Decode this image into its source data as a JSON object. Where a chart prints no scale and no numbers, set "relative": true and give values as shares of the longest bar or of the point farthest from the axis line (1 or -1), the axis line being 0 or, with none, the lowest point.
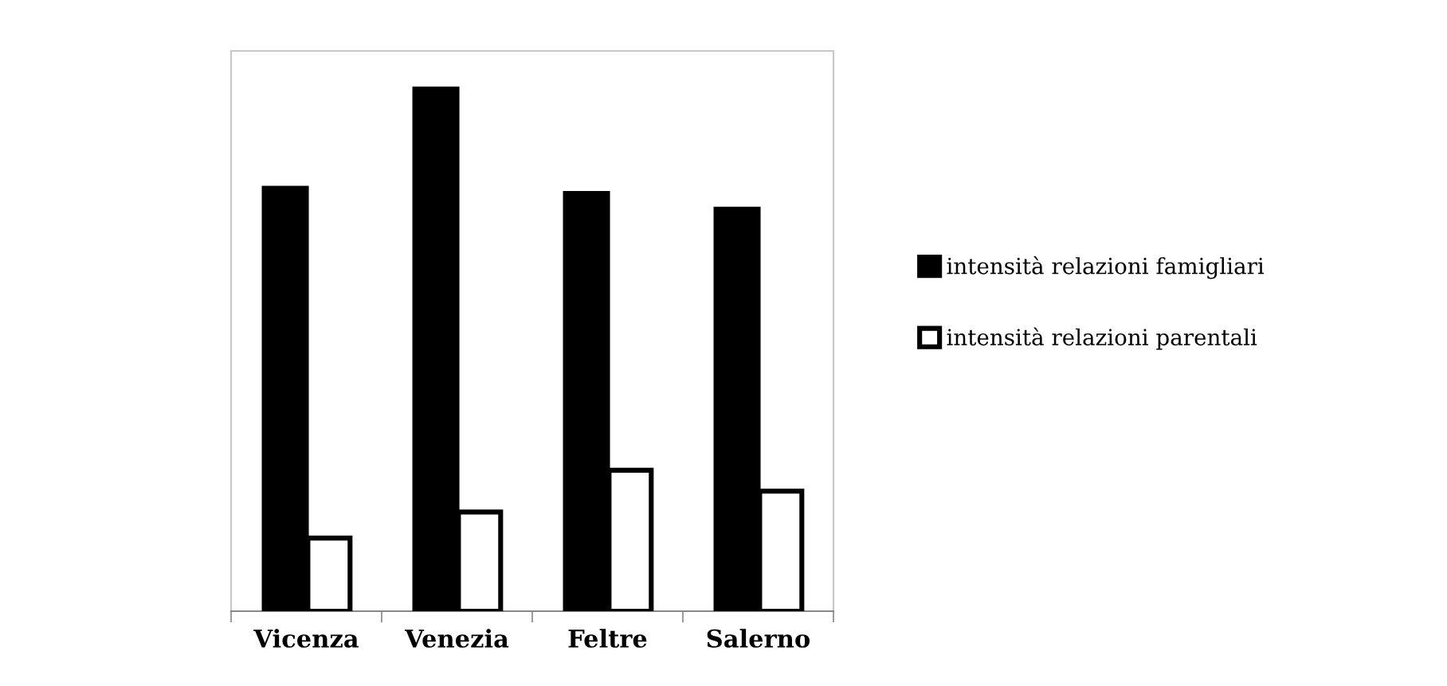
{
  "chart_data": {
    "type": "bar",
    "relative": true,
    "categories": [
      "Vicenza",
      "Venezia",
      "Feltre",
      "Salerno"
    ],
    "series": [
      {
        "name": "intensità relazioni famigliari",
        "color": "#000000",
        "values": [
          0.81,
          1,
          0.8,
          0.77
        ]
      },
      {
        "name": "intensità relazioni parentali",
        "color": "#ffffff",
        "values": [
          0.14,
          0.19,
          0.27,
          0.23
        ]
      }
    ],
    "legend": "right",
    "grid": false
  }
}
